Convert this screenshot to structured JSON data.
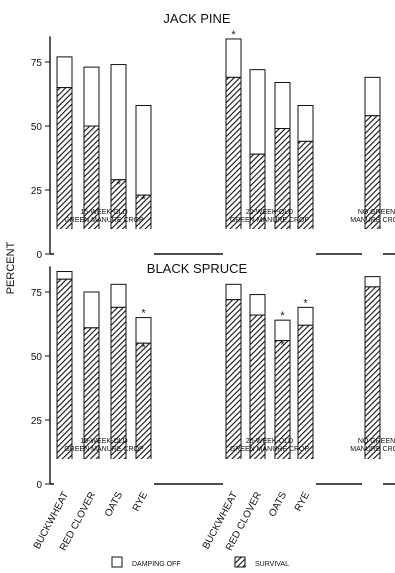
{
  "figure": {
    "ylabel": "PERCENT",
    "xcategories": [
      "BUCKWHEAT",
      "RED CLOVER",
      "OATS",
      "RYE"
    ],
    "legend": {
      "damping_label": "DAMPING OFF",
      "survival_label": "SURVIVAL"
    },
    "asterisk": "*"
  },
  "chart_data": [
    {
      "type": "bar",
      "stacked": true,
      "title": "JACK PINE",
      "ylim": [
        0,
        85
      ],
      "yticks": [
        0,
        25,
        50,
        75
      ],
      "groups": [
        {
          "label_line1": "15-WEEK-OLD",
          "label_line2": "GREEN MANURE CROP",
          "bars": [
            {
              "category": "BUCKWHEAT",
              "survival": 65,
              "damping_off": 12
            },
            {
              "category": "RED CLOVER",
              "survival": 50,
              "damping_off": 23
            },
            {
              "category": "OATS",
              "survival": 29,
              "damping_off": 45,
              "survival_marked": true
            },
            {
              "category": "RYE",
              "survival": 23,
              "damping_off": 35,
              "survival_marked": true
            }
          ]
        },
        {
          "label_line1": "20-WEEK-OLD",
          "label_line2": "GREEN MANURE CROP",
          "bars": [
            {
              "category": "BUCKWHEAT",
              "survival": 69,
              "damping_off": 15,
              "total_marked": true
            },
            {
              "category": "RED CLOVER",
              "survival": 39,
              "damping_off": 33
            },
            {
              "category": "OATS",
              "survival": 49,
              "damping_off": 18
            },
            {
              "category": "RYE",
              "survival": 44,
              "damping_off": 14
            }
          ]
        },
        {
          "label_line1": "NO GREEN",
          "label_line2": "MANURE CROP",
          "bars": [
            {
              "category": "",
              "survival": 54,
              "damping_off": 15
            }
          ]
        }
      ]
    },
    {
      "type": "bar",
      "stacked": true,
      "title": "BLACK SPRUCE",
      "ylim": [
        0,
        85
      ],
      "yticks": [
        0,
        25,
        50,
        75
      ],
      "groups": [
        {
          "label_line1": "15-WEEK-OLD",
          "label_line2": "GREEN MANURE CROP",
          "bars": [
            {
              "category": "BUCKWHEAT",
              "survival": 80,
              "damping_off": 3
            },
            {
              "category": "RED CLOVER",
              "survival": 61,
              "damping_off": 14
            },
            {
              "category": "OATS",
              "survival": 69,
              "damping_off": 9
            },
            {
              "category": "RYE",
              "survival": 55,
              "damping_off": 10,
              "survival_marked": true,
              "total_marked": true
            }
          ]
        },
        {
          "label_line1": "20-WEEK-OLD",
          "label_line2": "GREEN MANURE CROP",
          "bars": [
            {
              "category": "BUCKWHEAT",
              "survival": 72,
              "damping_off": 6
            },
            {
              "category": "RED CLOVER",
              "survival": 66,
              "damping_off": 8
            },
            {
              "category": "OATS",
              "survival": 56,
              "damping_off": 8,
              "survival_marked": true,
              "total_marked": true
            },
            {
              "category": "RYE",
              "survival": 62,
              "damping_off": 7,
              "total_marked": true
            }
          ]
        },
        {
          "label_line1": "NO GREEN",
          "label_line2": "MANURE CROP",
          "bars": [
            {
              "category": "",
              "survival": 77,
              "damping_off": 4
            }
          ]
        }
      ]
    }
  ]
}
